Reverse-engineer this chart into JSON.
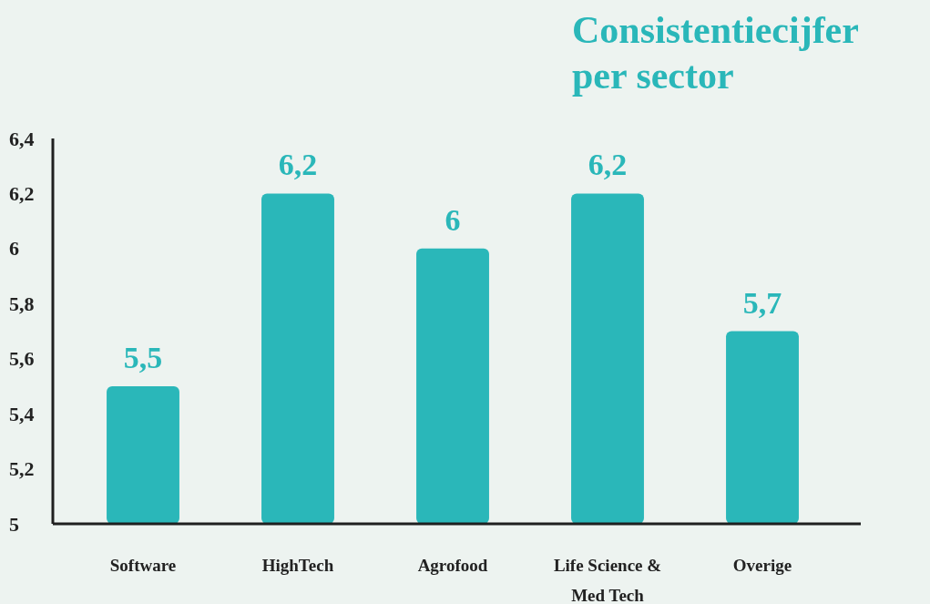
{
  "chart_data": {
    "type": "bar",
    "title": "Consistentiecijfer per sector",
    "categories": [
      "Software",
      "HighTech",
      "Agrofood",
      "Life Science & Med Tech",
      "Overige"
    ],
    "values": [
      5.5,
      6.2,
      6,
      6.2,
      5.7
    ],
    "value_labels": [
      "5,5",
      "6,2",
      "6",
      "6,2",
      "5,7"
    ],
    "color": "#2ab7b9",
    "ylim": [
      5,
      6.4
    ],
    "yticks": [
      5,
      {
        "value": 5.2,
        "label": "5,2"
      },
      {
        "value": 5.4,
        "label": "5,4"
      },
      {
        "value": 5.6,
        "label": "5,6"
      },
      {
        "value": 5.8,
        "label": "5,8"
      },
      6,
      {
        "value": 6.2,
        "label": "6,2"
      },
      {
        "value": 6.4,
        "label": "6,4"
      }
    ],
    "grid": false
  }
}
